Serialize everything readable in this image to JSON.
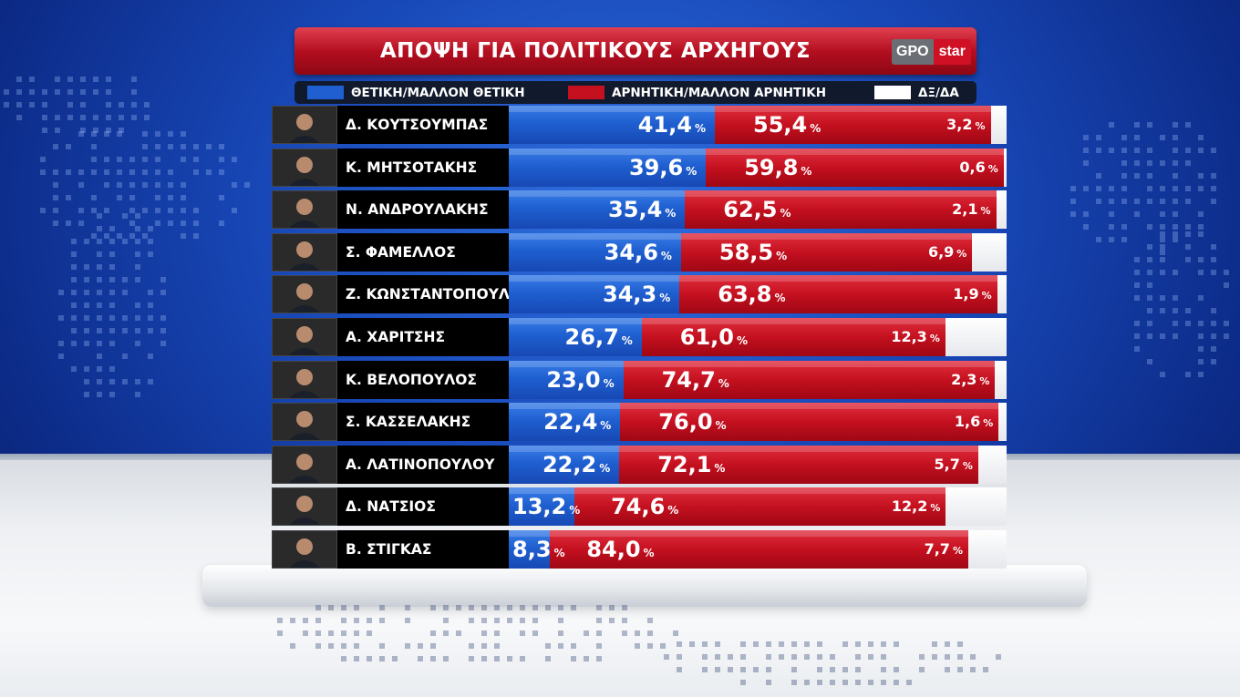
{
  "title": "ΑΠΟΨΗ ΓΙΑ ΠΟΛΙΤΙΚΟΥΣ ΑΡΧΗΓΟΥΣ",
  "logo": {
    "left": "GPO",
    "right": "star"
  },
  "legend": {
    "positive": "ΘΕΤΙΚΗ/ΜΑΛΛΟΝ ΘΕΤΙΚΗ",
    "negative": "ΑΡΝΗΤΙΚΗ/ΜΑΛΛΟΝ ΑΡΝΗΤΙΚΗ",
    "dk": "ΔΞ/ΔΑ"
  },
  "colors": {
    "positive": "#1f5fd0",
    "negative": "#c4101f",
    "dk": "#ffffff"
  },
  "percent_sign": "%",
  "chart_data": {
    "type": "bar",
    "orientation": "horizontal-stacked",
    "categories": [
      "Δ. ΚΟΥΤΣΟΥΜΠΑΣ",
      "Κ. ΜΗΤΣΟΤΑΚΗΣ",
      "Ν. ΑΝΔΡΟΥΛΑΚΗΣ",
      "Σ. ΦΑΜΕΛΛΟΣ",
      "Ζ. ΚΩΝΣΤΑΝΤΟΠΟΥΛΟΥ",
      "Α. ΧΑΡΙΤΣΗΣ",
      "Κ. ΒΕΛΟΠΟΥΛΟΣ",
      "Σ. ΚΑΣΣΕΛΑΚΗΣ",
      "Α. ΛΑΤΙΝΟΠΟΥΛΟΥ",
      "Δ. ΝΑΤΣΙΟΣ",
      "Β. ΣΤΙΓΚΑΣ"
    ],
    "series": [
      {
        "name": "ΘΕΤΙΚΗ/ΜΑΛΛΟΝ ΘΕΤΙΚΗ",
        "values": [
          41.4,
          39.6,
          35.4,
          34.6,
          34.3,
          26.7,
          23.0,
          22.4,
          22.2,
          13.2,
          8.3
        ],
        "labels": [
          "41,4",
          "39,6",
          "35,4",
          "34,6",
          "34,3",
          "26,7",
          "23,0",
          "22,4",
          "22,2",
          "13,2",
          "8,3"
        ]
      },
      {
        "name": "ΑΡΝΗΤΙΚΗ/ΜΑΛΛΟΝ ΑΡΝΗΤΙΚΗ",
        "values": [
          55.4,
          59.8,
          62.5,
          58.5,
          63.8,
          61.0,
          74.7,
          76.0,
          72.1,
          74.6,
          84.0
        ],
        "labels": [
          "55,4",
          "59,8",
          "62,5",
          "58,5",
          "63,8",
          "61,0",
          "74,7",
          "76,0",
          "72,1",
          "74,6",
          "84,0"
        ]
      },
      {
        "name": "ΔΞ/ΔΑ",
        "values": [
          3.2,
          0.6,
          2.1,
          6.9,
          1.9,
          12.3,
          2.3,
          1.6,
          5.7,
          12.2,
          7.7
        ],
        "labels": [
          "3,2",
          "0,6",
          "2,1",
          "6,9",
          "1,9",
          "12,3",
          "2,3",
          "1,6",
          "5,7",
          "12,2",
          "7,7"
        ]
      }
    ],
    "xlim": [
      0,
      100
    ]
  }
}
